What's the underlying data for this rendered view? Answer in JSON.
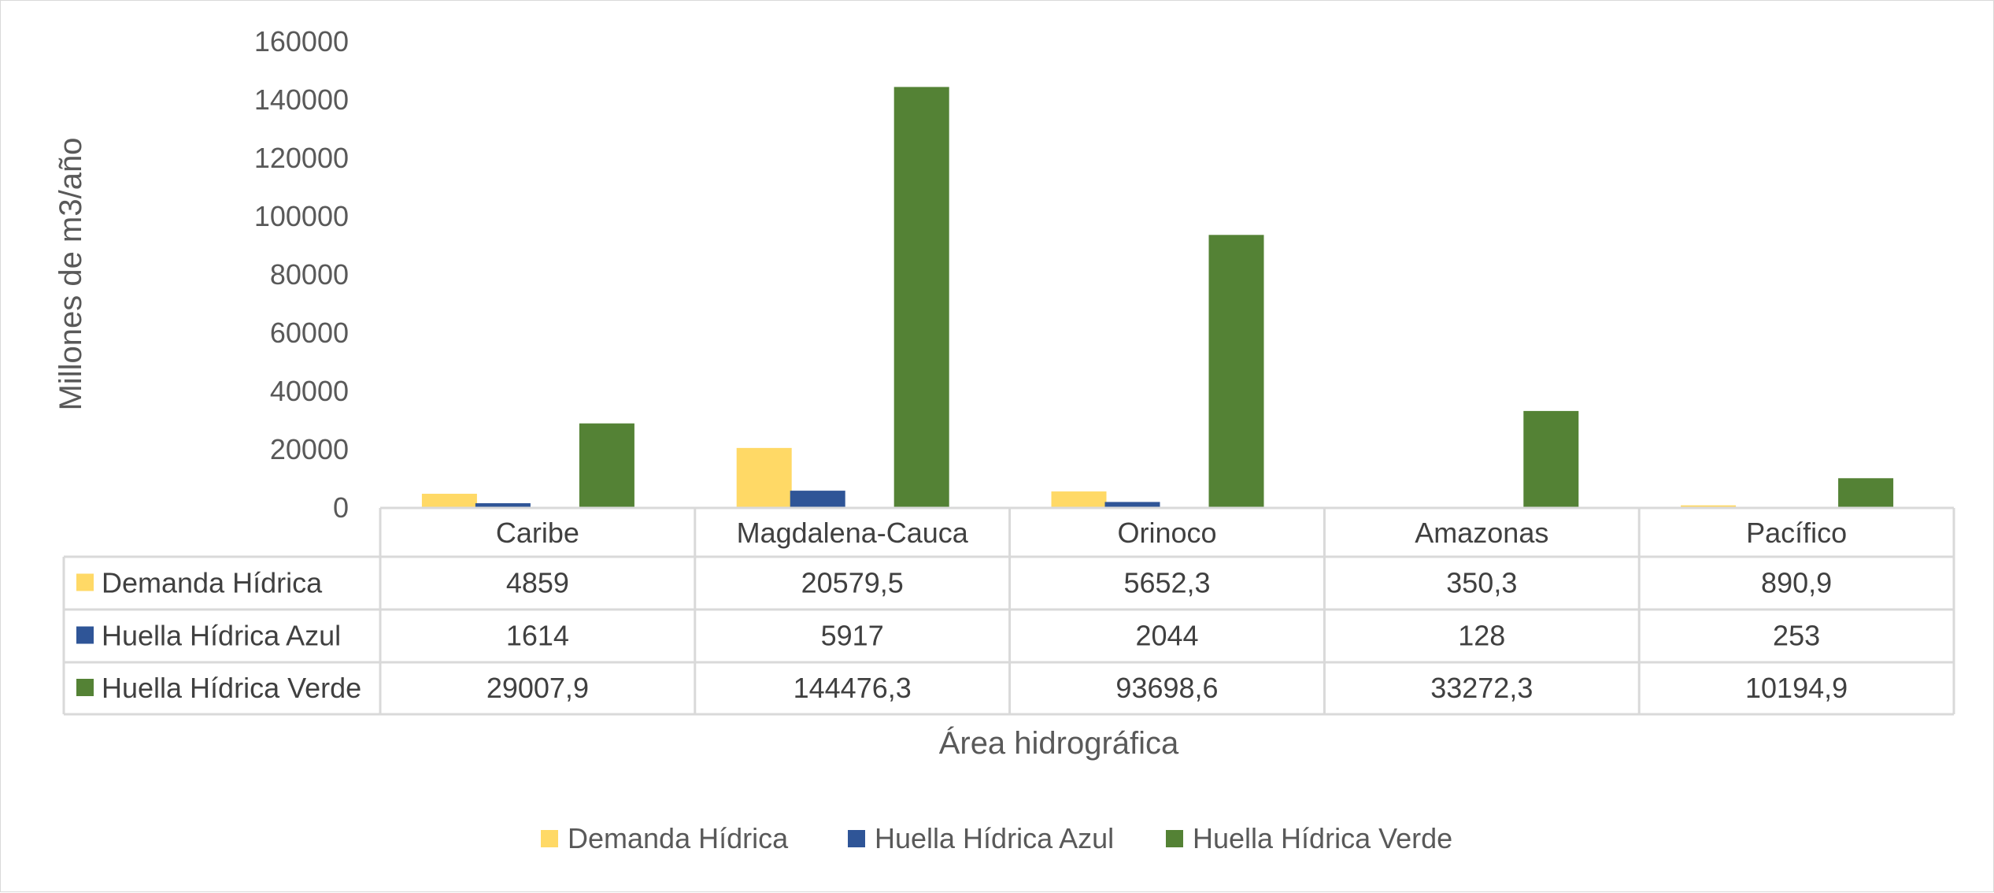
{
  "chart_data": {
    "type": "bar",
    "categories": [
      "Caribe",
      "Magdalena-Cauca",
      "Orinoco",
      "Amazonas",
      "Pacífico"
    ],
    "series": [
      {
        "name": "Demanda Hídrica",
        "color": "#FFD966",
        "values": [
          4859,
          20579.5,
          5652.3,
          350.3,
          890.9
        ],
        "labels": [
          "4859",
          "20579,5",
          "5652,3",
          "350,3",
          "890,9"
        ]
      },
      {
        "name": "Huella Hídrica Azul",
        "color": "#2F5597",
        "values": [
          1614,
          5917,
          2044,
          128,
          253
        ],
        "labels": [
          "1614",
          "5917",
          "2044",
          "128",
          "253"
        ]
      },
      {
        "name": "Huella Hídrica Verde",
        "color": "#548235",
        "values": [
          29007.9,
          144476.3,
          93698.6,
          33272.3,
          10194.9
        ],
        "labels": [
          "29007,9",
          "144476,3",
          "93698,6",
          "33272,3",
          "10194,9"
        ]
      }
    ],
    "ylim": [
      0,
      160000
    ],
    "yticks": [
      0,
      20000,
      40000,
      60000,
      80000,
      100000,
      120000,
      140000,
      160000
    ],
    "ylabel": "Millones de m3/año",
    "xlabel": "Área hidrográfica",
    "legend_position": "bottom",
    "data_table": true,
    "grid": false
  }
}
